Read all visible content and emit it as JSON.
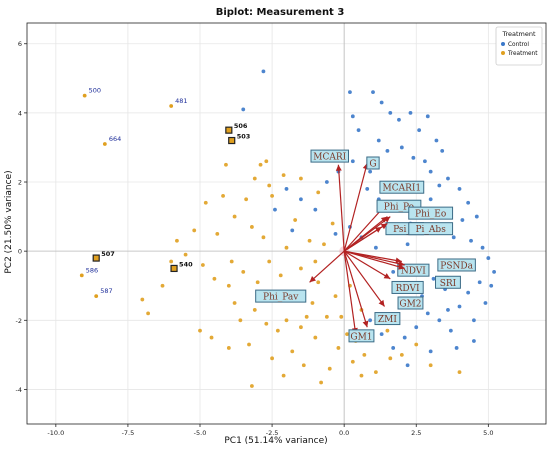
{
  "chart_data": {
    "type": "scatter",
    "title": "Biplot: Measurement 3",
    "xlabel": "PC1 (51.14% variance)",
    "ylabel": "PC2 (21.50% variance)",
    "xlim": [
      -11.0,
      7.0
    ],
    "ylim": [
      -5.0,
      6.6
    ],
    "xticks": [
      -10.0,
      -7.5,
      -5.0,
      -2.5,
      0.0,
      2.5,
      5.0
    ],
    "yticks": [
      -4,
      -2,
      0,
      2,
      4,
      6
    ],
    "grid": true,
    "reference_lines": {
      "x": 0,
      "y": 0
    },
    "legend": {
      "title": "Treatment",
      "placement": "top-right",
      "entries": [
        {
          "label": "Control",
          "color": "#3a78c9"
        },
        {
          "label": "Treatment",
          "color": "#e0a020"
        }
      ]
    },
    "loadings": [
      {
        "name": "MCARI",
        "x": -0.2,
        "y": 2.5,
        "label_x": -0.5,
        "label_y": 2.75
      },
      {
        "name": "G",
        "x": 0.8,
        "y": 2.55,
        "label_x": 1.0,
        "label_y": 2.55
      },
      {
        "name": "MCARI1",
        "x": 1.4,
        "y": 1.3,
        "label_x": 2.0,
        "label_y": 1.85
      },
      {
        "name": "Phi_Po",
        "x": 1.5,
        "y": 1.0,
        "label_x": 1.9,
        "label_y": 1.3
      },
      {
        "name": "Phi_Eo",
        "x": 1.6,
        "y": 1.0,
        "label_x": 3.0,
        "label_y": 1.1
      },
      {
        "name": "Psi_o",
        "x": 1.3,
        "y": 0.7,
        "label_x": 2.1,
        "label_y": 0.65
      },
      {
        "name": "Pi_Abs",
        "x": 1.5,
        "y": 0.8,
        "label_x": 3.0,
        "label_y": 0.65
      },
      {
        "name": "NDVI",
        "x": 2.0,
        "y": -0.3,
        "label_x": 2.4,
        "label_y": -0.55
      },
      {
        "name": "PSNDa",
        "x": 2.1,
        "y": -0.4,
        "label_x": 3.9,
        "label_y": -0.4
      },
      {
        "name": "SRI",
        "x": 2.1,
        "y": -0.5,
        "label_x": 3.6,
        "label_y": -0.9
      },
      {
        "name": "RDVI",
        "x": 1.6,
        "y": -0.8,
        "label_x": 2.2,
        "label_y": -1.05
      },
      {
        "name": "GM2",
        "x": 1.4,
        "y": -1.6,
        "label_x": 2.3,
        "label_y": -1.5
      },
      {
        "name": "ZMI",
        "x": 0.8,
        "y": -2.2,
        "label_x": 1.5,
        "label_y": -1.95
      },
      {
        "name": "GM1",
        "x": 0.4,
        "y": -2.4,
        "label_x": 0.6,
        "label_y": -2.45
      },
      {
        "name": "Phi_Pav",
        "x": -1.2,
        "y": -0.9,
        "label_x": -2.2,
        "label_y": -1.3
      }
    ],
    "labeled_points": [
      {
        "id": "500",
        "x": -9.0,
        "y": 4.5,
        "group": "Treatment",
        "bold": false
      },
      {
        "id": "481",
        "x": -6.0,
        "y": 4.2,
        "group": "Treatment",
        "bold": false
      },
      {
        "id": "664",
        "x": -8.3,
        "y": 3.1,
        "group": "Treatment",
        "bold": false
      },
      {
        "id": "506",
        "x": -4.0,
        "y": 3.5,
        "group": "Treatment",
        "bold": true
      },
      {
        "id": "503",
        "x": -3.9,
        "y": 3.2,
        "group": "Treatment",
        "bold": true
      },
      {
        "id": "507",
        "x": -8.6,
        "y": -0.2,
        "group": "Treatment",
        "bold": true
      },
      {
        "id": "586",
        "x": -9.1,
        "y": -0.7,
        "group": "Treatment",
        "bold": false
      },
      {
        "id": "540",
        "x": -5.9,
        "y": -0.5,
        "group": "Treatment",
        "bold": true
      },
      {
        "id": "587",
        "x": -8.6,
        "y": -1.3,
        "group": "Treatment",
        "bold": false
      }
    ],
    "series": [
      {
        "name": "Control",
        "color": "#3a78c9",
        "points": [
          [
            -2.8,
            5.2
          ],
          [
            0.2,
            4.6
          ],
          [
            -3.5,
            4.1
          ],
          [
            0.3,
            3.9
          ],
          [
            0.5,
            3.5
          ],
          [
            1.0,
            4.6
          ],
          [
            1.3,
            4.3
          ],
          [
            1.6,
            4.0
          ],
          [
            1.9,
            3.8
          ],
          [
            2.3,
            4.0
          ],
          [
            2.6,
            3.5
          ],
          [
            2.9,
            3.9
          ],
          [
            3.2,
            3.2
          ],
          [
            3.4,
            2.9
          ],
          [
            1.2,
            3.2
          ],
          [
            1.5,
            2.9
          ],
          [
            2.0,
            3.0
          ],
          [
            2.4,
            2.7
          ],
          [
            2.8,
            2.6
          ],
          [
            3.0,
            2.3
          ],
          [
            3.6,
            2.1
          ],
          [
            4.0,
            1.8
          ],
          [
            4.3,
            1.4
          ],
          [
            4.6,
            1.0
          ],
          [
            4.1,
            0.9
          ],
          [
            3.8,
            0.4
          ],
          [
            4.4,
            0.3
          ],
          [
            4.8,
            0.1
          ],
          [
            5.0,
            -0.2
          ],
          [
            5.2,
            -0.6
          ],
          [
            4.7,
            -0.9
          ],
          [
            4.3,
            -1.2
          ],
          [
            4.0,
            -1.6
          ],
          [
            4.5,
            -2.0
          ],
          [
            3.7,
            -2.3
          ],
          [
            3.3,
            -2.0
          ],
          [
            2.9,
            -1.8
          ],
          [
            2.5,
            -2.2
          ],
          [
            2.1,
            -2.5
          ],
          [
            1.7,
            -2.8
          ],
          [
            1.3,
            -2.4
          ],
          [
            0.9,
            -2.0
          ],
          [
            2.7,
            -1.3
          ],
          [
            3.1,
            -0.8
          ],
          [
            3.5,
            -1.1
          ],
          [
            2.2,
            0.2
          ],
          [
            1.7,
            -0.6
          ],
          [
            1.1,
            0.1
          ],
          [
            0.6,
            0.4
          ],
          [
            0.2,
            0.7
          ],
          [
            -0.3,
            0.5
          ],
          [
            -1.0,
            1.2
          ],
          [
            -1.5,
            1.5
          ],
          [
            -2.0,
            1.8
          ],
          [
            -2.4,
            1.2
          ],
          [
            -1.8,
            0.6
          ],
          [
            0.8,
            1.8
          ],
          [
            1.2,
            1.5
          ],
          [
            1.6,
            1.2
          ],
          [
            2.2,
            1.4
          ],
          [
            2.6,
            1.8
          ],
          [
            3.0,
            1.5
          ],
          [
            3.3,
            1.9
          ],
          [
            0.3,
            2.6
          ],
          [
            -0.2,
            2.3
          ],
          [
            -0.6,
            2.0
          ],
          [
            4.5,
            -2.6
          ],
          [
            3.9,
            -2.8
          ],
          [
            3.0,
            -2.9
          ],
          [
            2.2,
            -3.3
          ],
          [
            4.9,
            -1.5
          ],
          [
            5.1,
            -1.0
          ],
          [
            3.6,
            -1.7
          ],
          [
            3.5,
            1.2
          ],
          [
            2.3,
            0.8
          ],
          [
            0.9,
            2.3
          ]
        ]
      },
      {
        "name": "Treatment",
        "color": "#e0a020",
        "points": [
          [
            -2.9,
            2.5
          ],
          [
            -2.7,
            2.6
          ],
          [
            -3.1,
            2.1
          ],
          [
            -2.6,
            1.9
          ],
          [
            -2.1,
            2.2
          ],
          [
            -2.5,
            1.6
          ],
          [
            -3.4,
            1.5
          ],
          [
            -4.2,
            1.6
          ],
          [
            -4.8,
            1.4
          ],
          [
            -3.8,
            1.0
          ],
          [
            -3.2,
            0.7
          ],
          [
            -2.8,
            0.4
          ],
          [
            -4.4,
            0.5
          ],
          [
            -5.2,
            0.6
          ],
          [
            -5.8,
            0.3
          ],
          [
            -5.5,
            -0.1
          ],
          [
            -4.9,
            -0.4
          ],
          [
            -4.5,
            -0.8
          ],
          [
            -4.0,
            -1.0
          ],
          [
            -3.5,
            -0.6
          ],
          [
            -3.0,
            -0.9
          ],
          [
            -2.6,
            -0.3
          ],
          [
            -2.2,
            -0.7
          ],
          [
            -1.8,
            -1.2
          ],
          [
            -1.5,
            -0.5
          ],
          [
            -1.1,
            -1.5
          ],
          [
            -0.9,
            -0.9
          ],
          [
            -0.6,
            -1.9
          ],
          [
            -0.3,
            -1.3
          ],
          [
            0.1,
            -2.4
          ],
          [
            0.4,
            -2.6
          ],
          [
            0.7,
            -3.0
          ],
          [
            0.3,
            -3.2
          ],
          [
            -0.2,
            -2.8
          ],
          [
            -0.5,
            -3.4
          ],
          [
            -1.0,
            -2.5
          ],
          [
            -1.5,
            -2.2
          ],
          [
            -2.0,
            -2.0
          ],
          [
            -2.3,
            -2.3
          ],
          [
            -2.7,
            -2.1
          ],
          [
            -3.1,
            -1.7
          ],
          [
            -3.6,
            -2.0
          ],
          [
            -4.0,
            -2.8
          ],
          [
            -3.3,
            -2.7
          ],
          [
            -2.5,
            -3.1
          ],
          [
            -1.8,
            -2.9
          ],
          [
            -3.2,
            -3.9
          ],
          [
            -2.1,
            -3.6
          ],
          [
            -1.4,
            -3.3
          ],
          [
            -0.8,
            -3.8
          ],
          [
            0.6,
            -3.6
          ],
          [
            1.1,
            -3.5
          ],
          [
            1.6,
            -3.1
          ],
          [
            2.0,
            -3.0
          ],
          [
            2.5,
            -2.7
          ],
          [
            3.0,
            -3.3
          ],
          [
            4.0,
            -3.5
          ],
          [
            -0.4,
            0.8
          ],
          [
            -0.7,
            0.2
          ],
          [
            -1.2,
            0.3
          ],
          [
            -1.7,
            0.9
          ],
          [
            -2.0,
            0.1
          ],
          [
            -0.9,
            1.7
          ],
          [
            -1.5,
            2.1
          ],
          [
            -6.3,
            -1.0
          ],
          [
            -6.8,
            -1.8
          ],
          [
            -7.0,
            -1.4
          ],
          [
            -5.0,
            -2.3
          ],
          [
            -4.6,
            -2.5
          ],
          [
            -6.0,
            -0.3
          ],
          [
            -3.8,
            -1.5
          ],
          [
            -1.0,
            -0.3
          ],
          [
            0.2,
            -1.0
          ],
          [
            0.6,
            -1.7
          ],
          [
            -0.1,
            -1.9
          ],
          [
            1.5,
            -2.3
          ],
          [
            -2.9,
            -1.3
          ],
          [
            -1.3,
            -1.9
          ],
          [
            -3.9,
            -0.3
          ],
          [
            -4.1,
            2.5
          ]
        ]
      }
    ]
  }
}
